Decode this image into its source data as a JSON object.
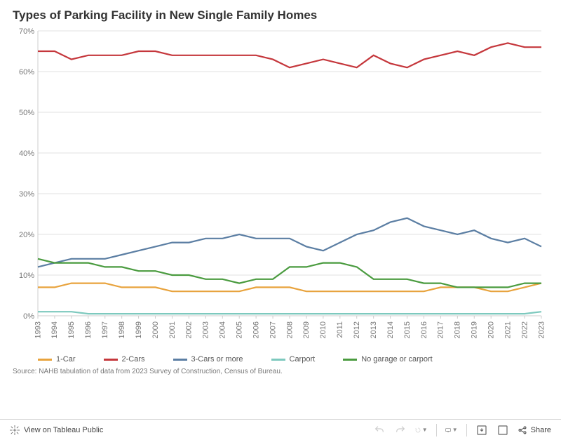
{
  "title": "Types of Parking Facility in New Single Family Homes",
  "source": "Source: NAHB tabulation of data from 2023 Survey of Construction, Census of Bureau.",
  "chart": {
    "type": "line",
    "xlim": [
      1993,
      2023
    ],
    "ylim": [
      0,
      70
    ],
    "ytick_step": 10,
    "ytick_suffix": "%",
    "background_color": "#ffffff",
    "grid_color": "#e0e0e0",
    "axis_color": "#cccccc",
    "label_color": "#787878",
    "label_fontsize": 11,
    "line_width": 2.2,
    "years": [
      1993,
      1994,
      1995,
      1996,
      1997,
      1998,
      1999,
      2000,
      2001,
      2002,
      2003,
      2004,
      2005,
      2006,
      2007,
      2008,
      2009,
      2010,
      2011,
      2012,
      2013,
      2014,
      2015,
      2016,
      2017,
      2018,
      2019,
      2020,
      2021,
      2022,
      2023
    ],
    "series": [
      {
        "name": "1-Car",
        "color": "#e8a33d",
        "values": [
          7,
          7,
          8,
          8,
          8,
          7,
          7,
          7,
          6,
          6,
          6,
          6,
          6,
          7,
          7,
          7,
          6,
          6,
          6,
          6,
          6,
          6,
          6,
          6,
          7,
          7,
          7,
          6,
          6,
          7,
          8
        ]
      },
      {
        "name": "2-Cars",
        "color": "#c5373c",
        "values": [
          65,
          65,
          63,
          64,
          64,
          64,
          65,
          65,
          64,
          64,
          64,
          64,
          64,
          64,
          63,
          61,
          62,
          63,
          62,
          61,
          64,
          62,
          61,
          63,
          64,
          65,
          64,
          66,
          67,
          66,
          66
        ]
      },
      {
        "name": "3-Cars or more",
        "color": "#5b7ea3",
        "values": [
          12,
          13,
          14,
          14,
          14,
          15,
          16,
          17,
          18,
          18,
          19,
          19,
          20,
          19,
          19,
          19,
          17,
          16,
          18,
          20,
          21,
          23,
          24,
          22,
          21,
          20,
          21,
          19,
          18,
          19,
          17
        ]
      },
      {
        "name": "Carport",
        "color": "#7dc9be",
        "values": [
          1,
          1,
          1,
          0.5,
          0.5,
          0.5,
          0.5,
          0.5,
          0.5,
          0.5,
          0.5,
          0.5,
          0.5,
          0.5,
          0.5,
          0.5,
          0.5,
          0.5,
          0.5,
          0.5,
          0.5,
          0.5,
          0.5,
          0.5,
          0.5,
          0.5,
          0.5,
          0.5,
          0.5,
          0.5,
          1
        ]
      },
      {
        "name": "No garage or carport",
        "color": "#4a9b3f",
        "values": [
          14,
          13,
          13,
          13,
          12,
          12,
          11,
          11,
          10,
          10,
          9,
          9,
          8,
          9,
          9,
          12,
          12,
          13,
          13,
          12,
          9,
          9,
          9,
          8,
          8,
          7,
          7,
          7,
          7,
          8,
          8
        ]
      }
    ]
  },
  "footer": {
    "view_label": "View on Tableau Public",
    "share_label": "Share"
  }
}
